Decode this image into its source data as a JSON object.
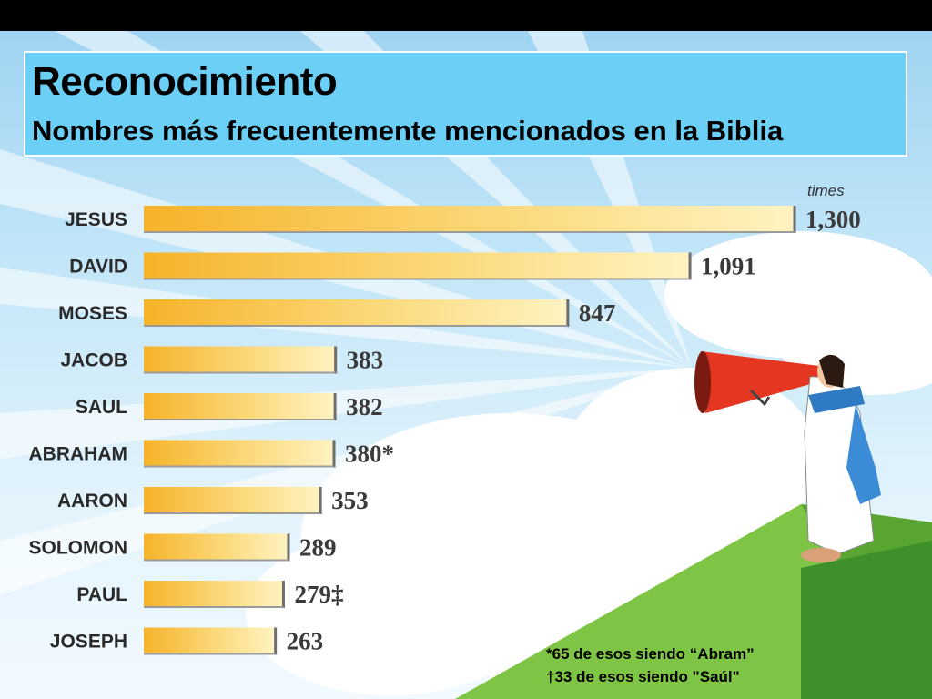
{
  "slide": {
    "title": "Reconocimiento",
    "subtitle": "Nombres más frecuentemente mencionados en la Biblia",
    "footnotes": [
      "*65 de esos siendo “Abram”",
      "†33 de esos siendo \"Saúl\""
    ]
  },
  "chart_data": {
    "type": "bar",
    "orientation": "horizontal",
    "units_label": "times",
    "categories": [
      "JESUS",
      "DAVID",
      "MOSES",
      "JACOB",
      "SAUL",
      "ABRAHAM",
      "AARON",
      "SOLOMON",
      "PAUL",
      "JOSEPH"
    ],
    "values": [
      1300,
      1091,
      847,
      383,
      382,
      380,
      353,
      289,
      279,
      263
    ],
    "value_labels": [
      "1,300",
      "1,091",
      "847",
      "383",
      "382",
      "380*",
      "353",
      "289",
      "279‡",
      "263"
    ],
    "title": "",
    "xlabel": "",
    "ylabel": "",
    "grid": false,
    "colors": {
      "bar_start": "#f6b32a",
      "bar_end": "#fff3c2",
      "bar_edge": "#6e6e6e"
    }
  }
}
